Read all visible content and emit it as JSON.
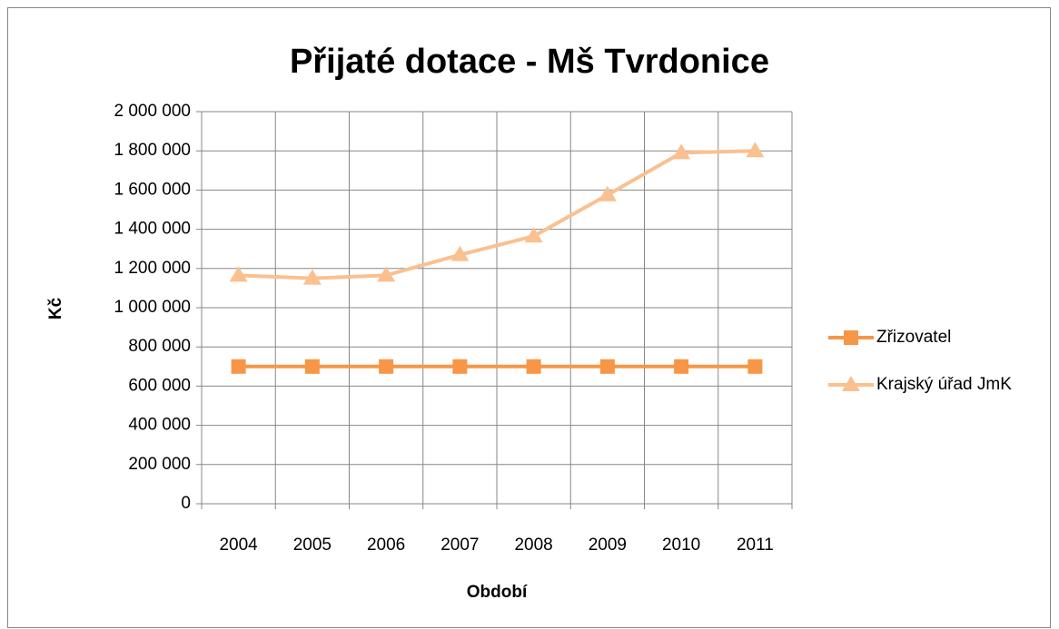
{
  "chart_data": {
    "type": "line",
    "title": "Přijaté dotace - Mš Tvrdonice",
    "x_label": "Období",
    "y_label": "Kč",
    "categories": [
      "2004",
      "2005",
      "2006",
      "2007",
      "2008",
      "2009",
      "2010",
      "2011"
    ],
    "series": [
      {
        "name": "Zřizovatel",
        "color": "#f79646",
        "marker": "square",
        "values": [
          700000,
          700000,
          700000,
          700000,
          700000,
          700000,
          700000,
          700000
        ]
      },
      {
        "name": "Krajský úřad JmK",
        "color": "#fac090",
        "marker": "triangle",
        "values": [
          1165000,
          1150000,
          1165000,
          1270000,
          1365000,
          1575000,
          1790000,
          1800000
        ]
      }
    ],
    "ylim": [
      0,
      2000000
    ],
    "yticks": [
      0,
      {
        "value": 200000,
        "label": "200 000"
      },
      {
        "value": 400000,
        "label": "400 000"
      },
      {
        "value": 600000,
        "label": "600 000"
      },
      {
        "value": 800000,
        "label": "800 000"
      },
      {
        "value": 1000000,
        "label": "1 000 000"
      },
      {
        "value": 1200000,
        "label": "1 200 000"
      },
      {
        "value": 1400000,
        "label": "1 400 000"
      },
      {
        "value": 1600000,
        "label": "1 600 000"
      },
      {
        "value": 1800000,
        "label": "1 800 000"
      },
      {
        "value": 2000000,
        "label": "2 000 000"
      }
    ],
    "grid": true,
    "legend": "right"
  }
}
